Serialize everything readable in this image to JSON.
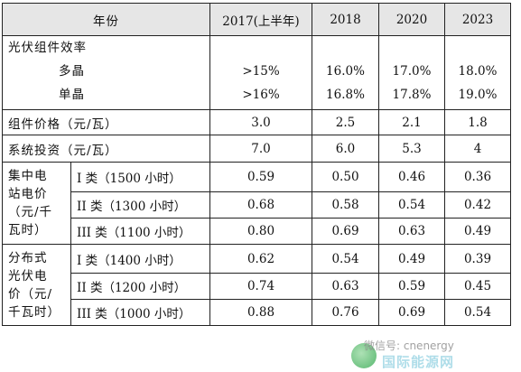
{
  "table": {
    "header": {
      "label": "年份",
      "years": [
        "2017(上半年)",
        "2018",
        "2020",
        "2023"
      ]
    },
    "efficiency": {
      "label": "光伏组件效率",
      "multi_label": "多晶",
      "mono_label": "单晶",
      "multi": [
        ">15%",
        "16.0%",
        "17.0%",
        "18.0%"
      ],
      "mono": [
        ">16%",
        "16.8%",
        "17.8%",
        "19.0%"
      ]
    },
    "module_price": {
      "label": "组件价格（元/瓦）",
      "values": [
        "3.0",
        "2.5",
        "2.1",
        "1.8"
      ]
    },
    "system_investment": {
      "label": "系统投资（元/瓦）",
      "values": [
        "7.0",
        "6.0",
        "5.3",
        "4"
      ]
    },
    "central": {
      "label_lines": [
        "集中电",
        "站电价",
        "（元/千",
        "瓦时）"
      ],
      "rows": [
        {
          "class": "I 类（1500 小时）",
          "values": [
            "0.59",
            "0.50",
            "0.46",
            "0.36"
          ]
        },
        {
          "class": "II 类（1300 小时）",
          "values": [
            "0.68",
            "0.58",
            "0.54",
            "0.42"
          ]
        },
        {
          "class": "III 类（1100 小时）",
          "values": [
            "0.80",
            "0.69",
            "0.63",
            "0.49"
          ]
        }
      ]
    },
    "distributed": {
      "label_lines": [
        "分布式",
        "光伏电",
        "价（元/",
        "千瓦时）"
      ],
      "rows": [
        {
          "class": "I 类（1400 小时）",
          "values": [
            "0.62",
            "0.54",
            "0.49",
            "0.39"
          ]
        },
        {
          "class": "II 类（1200 小时）",
          "values": [
            "0.74",
            "0.63",
            "0.59",
            "0.45"
          ]
        },
        {
          "class": "III 类（1000 小时）",
          "values": [
            "0.88",
            "0.76",
            "0.69",
            "0.54"
          ]
        }
      ]
    }
  },
  "watermark": {
    "line1": "微信号: cnenergy",
    "line2": "国际能源网"
  }
}
